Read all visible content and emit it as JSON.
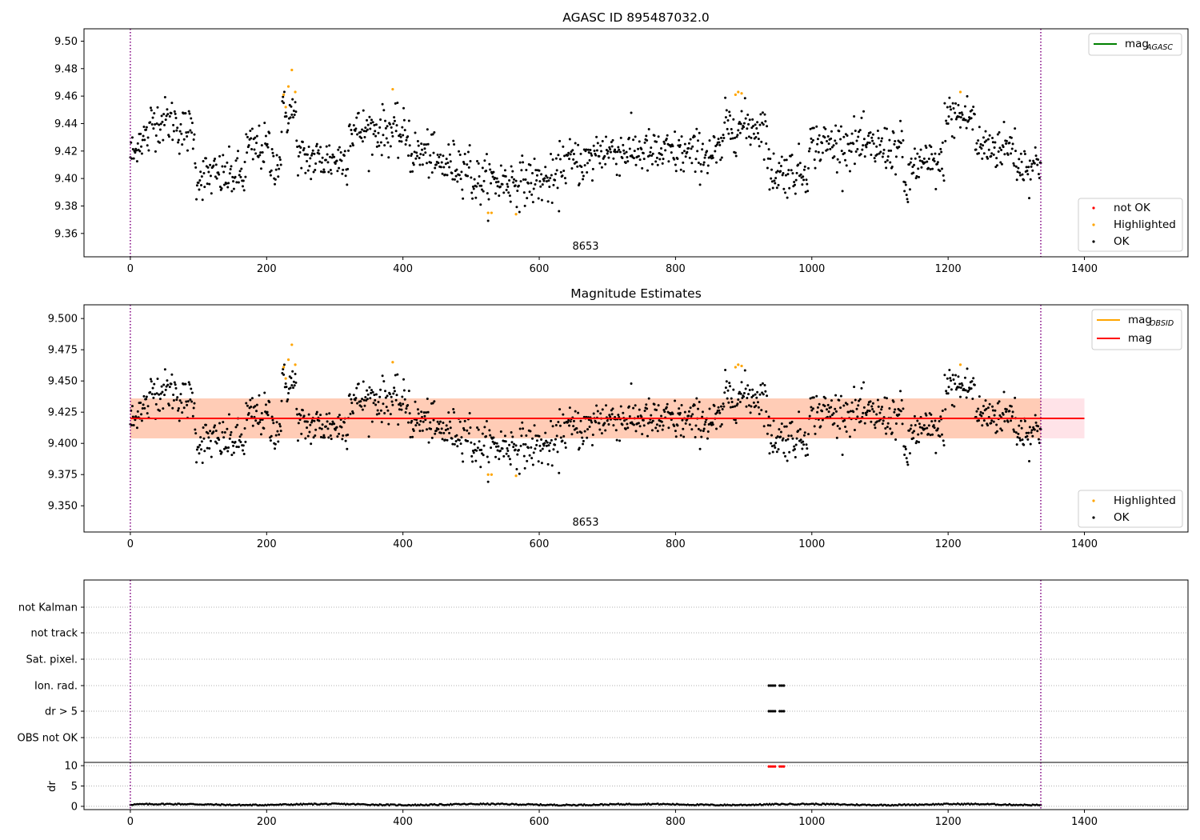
{
  "chart_data": [
    {
      "type": "scatter",
      "title": "AGASC ID 895487032.0",
      "xlim": [
        -68,
        1552
      ],
      "ylim": [
        9.343,
        9.509
      ],
      "xticks": [
        0,
        200,
        400,
        600,
        800,
        1000,
        1200,
        1400
      ],
      "yticks": [
        9.36,
        9.38,
        9.4,
        9.42,
        9.44,
        9.46,
        9.48,
        9.5
      ],
      "ytick_decimals": 2,
      "obsid_lines": [
        0,
        1336
      ],
      "obsid_label": {
        "text": "8653",
        "x": 668
      },
      "legend_lines": [
        {
          "label": "mag",
          "sub": "AGASC",
          "color": "#008000"
        }
      ],
      "legend_points": [
        {
          "label": "not OK",
          "color": "#ff0000"
        },
        {
          "label": "Highlighted",
          "color": "#ffa500"
        },
        {
          "label": "OK",
          "color": "#000000"
        }
      ],
      "highlighted_points": [
        [
          225,
          9.461
        ],
        [
          228,
          9.452
        ],
        [
          232,
          9.467
        ],
        [
          237,
          9.479
        ],
        [
          242,
          9.463
        ],
        [
          385,
          9.465
        ],
        [
          525,
          9.375
        ],
        [
          530,
          9.375
        ],
        [
          566,
          9.374
        ],
        [
          888,
          9.461
        ],
        [
          892,
          9.463
        ],
        [
          897,
          9.462
        ],
        [
          1218,
          9.463
        ]
      ]
    },
    {
      "type": "scatter",
      "title": "Magnitude Estimates",
      "xlim": [
        -68,
        1552
      ],
      "ylim": [
        9.329,
        9.511
      ],
      "xticks": [
        0,
        200,
        400,
        600,
        800,
        1000,
        1200,
        1400
      ],
      "yticks": [
        9.35,
        9.375,
        9.4,
        9.425,
        9.45,
        9.475,
        9.5
      ],
      "ytick_decimals": 3,
      "obsid_lines": [
        0,
        1336
      ],
      "obsid_label": {
        "text": "8653",
        "x": 668
      },
      "mean_mag": 9.42,
      "band_obsid": [
        9.404,
        9.436
      ],
      "band_agasc": [
        9.404,
        9.436
      ],
      "band_x": [
        0,
        1400
      ],
      "legend_lines": [
        {
          "label": "mag",
          "sub": "OBSID",
          "color": "#ffa500"
        },
        {
          "label": "mag",
          "sub": "",
          "color": "#ff0000"
        }
      ],
      "legend_points": [
        {
          "label": "Highlighted",
          "color": "#ffa500"
        },
        {
          "label": "OK",
          "color": "#000000"
        }
      ],
      "highlighted_points": [
        [
          225,
          9.461
        ],
        [
          228,
          9.452
        ],
        [
          232,
          9.467
        ],
        [
          237,
          9.479
        ],
        [
          242,
          9.463
        ],
        [
          385,
          9.465
        ],
        [
          525,
          9.375
        ],
        [
          530,
          9.375
        ],
        [
          566,
          9.374
        ],
        [
          888,
          9.461
        ],
        [
          892,
          9.463
        ],
        [
          897,
          9.462
        ],
        [
          1218,
          9.463
        ]
      ]
    },
    {
      "type": "scatter",
      "title": "",
      "xlim": [
        -68,
        1552
      ],
      "xticks": [
        0,
        200,
        400,
        600,
        800,
        1000,
        1200,
        1400
      ],
      "obsid_lines": [
        0,
        1336
      ],
      "flag_rows": [
        "not Kalman",
        "not track",
        "Sat. pixel.",
        "Ion. rad.",
        "dr > 5",
        "OBS not OK"
      ],
      "flag_points": {
        "Ion. rad.": [
          937,
          940,
          943,
          946,
          953,
          956,
          959
        ],
        "dr > 5": [
          937,
          940,
          943,
          946,
          953,
          956,
          959
        ]
      },
      "dr_ylabel": "dr",
      "dr_yticks": [
        0,
        5,
        10
      ],
      "dr_ylim": [
        -0.8,
        10.8
      ],
      "dr_threshold": 5,
      "dr_clipped_points": [
        937,
        940,
        943,
        946,
        953,
        956,
        959
      ]
    }
  ]
}
